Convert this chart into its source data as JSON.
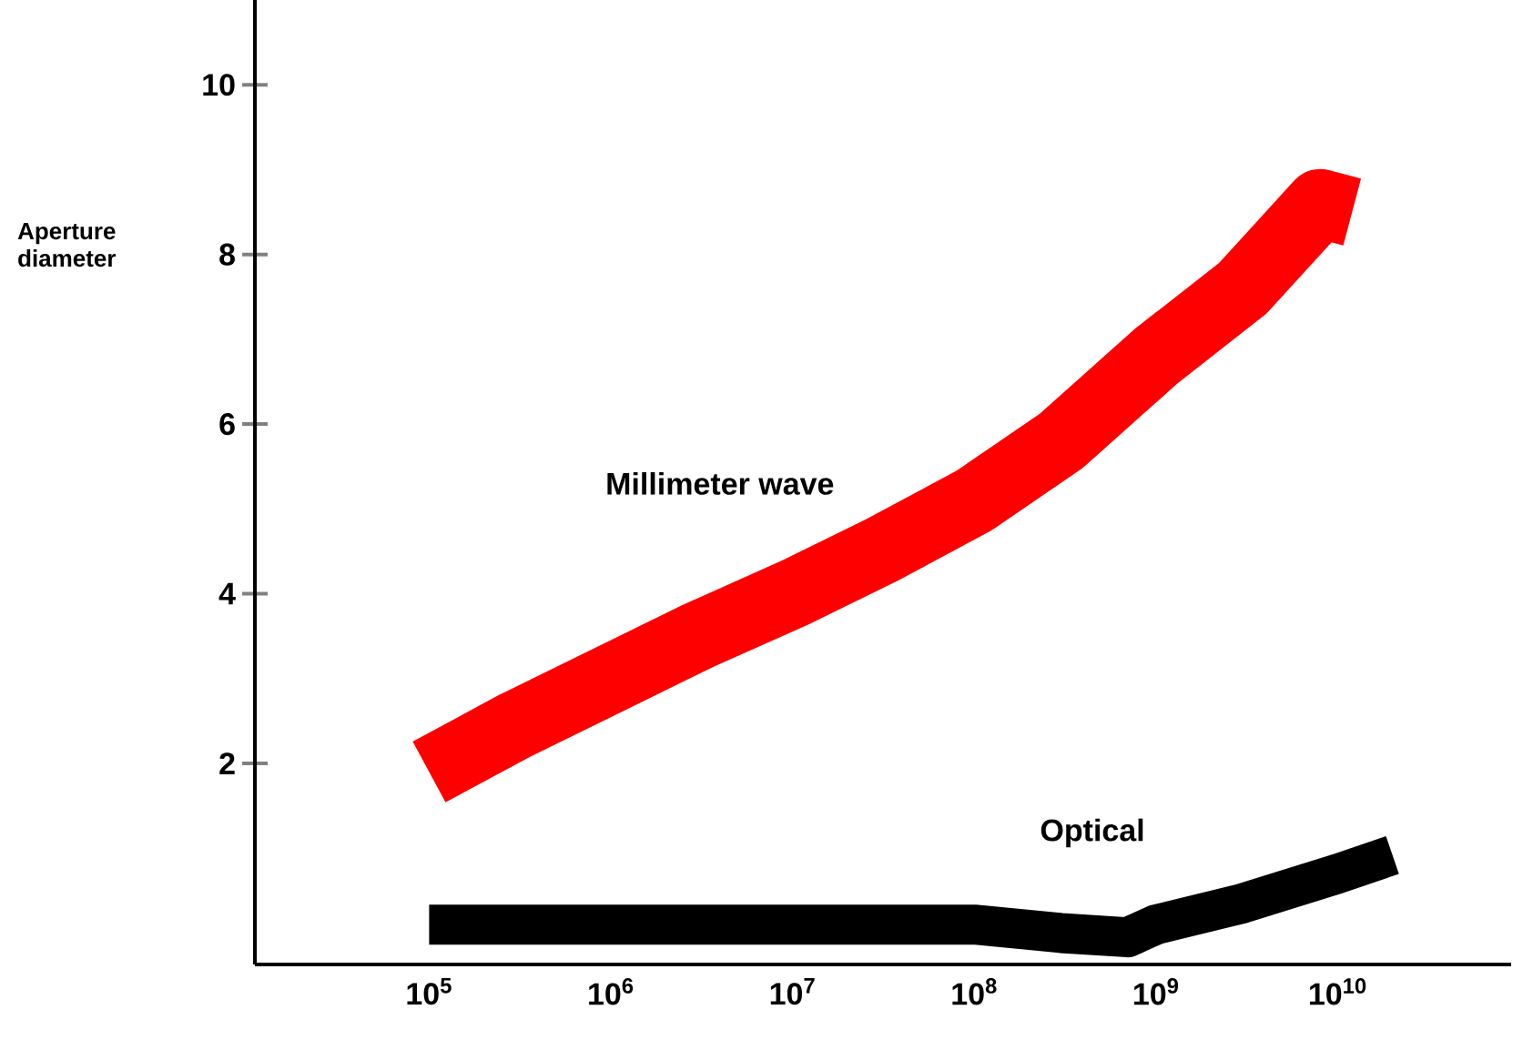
{
  "chart_data": {
    "type": "line",
    "ylabel": "Aperture diameter",
    "log": "x",
    "marker": "none",
    "line_style": "solid",
    "xlim": [
      11000,
      90000000000
    ],
    "ylim": [
      -0.37,
      11
    ],
    "xticks": [
      {
        "value": 100000,
        "label": "10$^{5}$"
      },
      {
        "value": 1000000,
        "label": "10$^{6}$"
      },
      {
        "value": 10000000,
        "label": "10$^{7}$"
      },
      {
        "value": 100000000,
        "label": "10$^{8}$"
      },
      {
        "value": 1000000000,
        "label": "10$^{9}$"
      },
      {
        "value": 10000000000,
        "label": "10$^{10}$"
      }
    ],
    "yticks": [
      2,
      4,
      6,
      8,
      10
    ],
    "series": [
      {
        "name": "Millimeter wave",
        "color": "#ff0000",
        "x": [
          100000,
          300000,
          1000000,
          3000000,
          10000000,
          30000000,
          100000000,
          300000000,
          1000000000,
          3000000000,
          8000000000,
          12000000000
        ],
        "values": [
          1.9,
          2.45,
          3.0,
          3.5,
          4.0,
          4.5,
          5.1,
          5.8,
          6.8,
          7.6,
          8.6,
          8.5
        ]
      },
      {
        "name": "Optical",
        "color": "#000000",
        "x": [
          100000,
          1000000,
          10000000,
          100000000,
          300000000,
          700000000,
          1000000000,
          3000000000,
          10000000000,
          20000000000
        ],
        "values": [
          0.1,
          0.1,
          0.1,
          0.1,
          0.0,
          -0.05,
          0.1,
          0.35,
          0.7,
          0.92
        ]
      }
    ]
  }
}
